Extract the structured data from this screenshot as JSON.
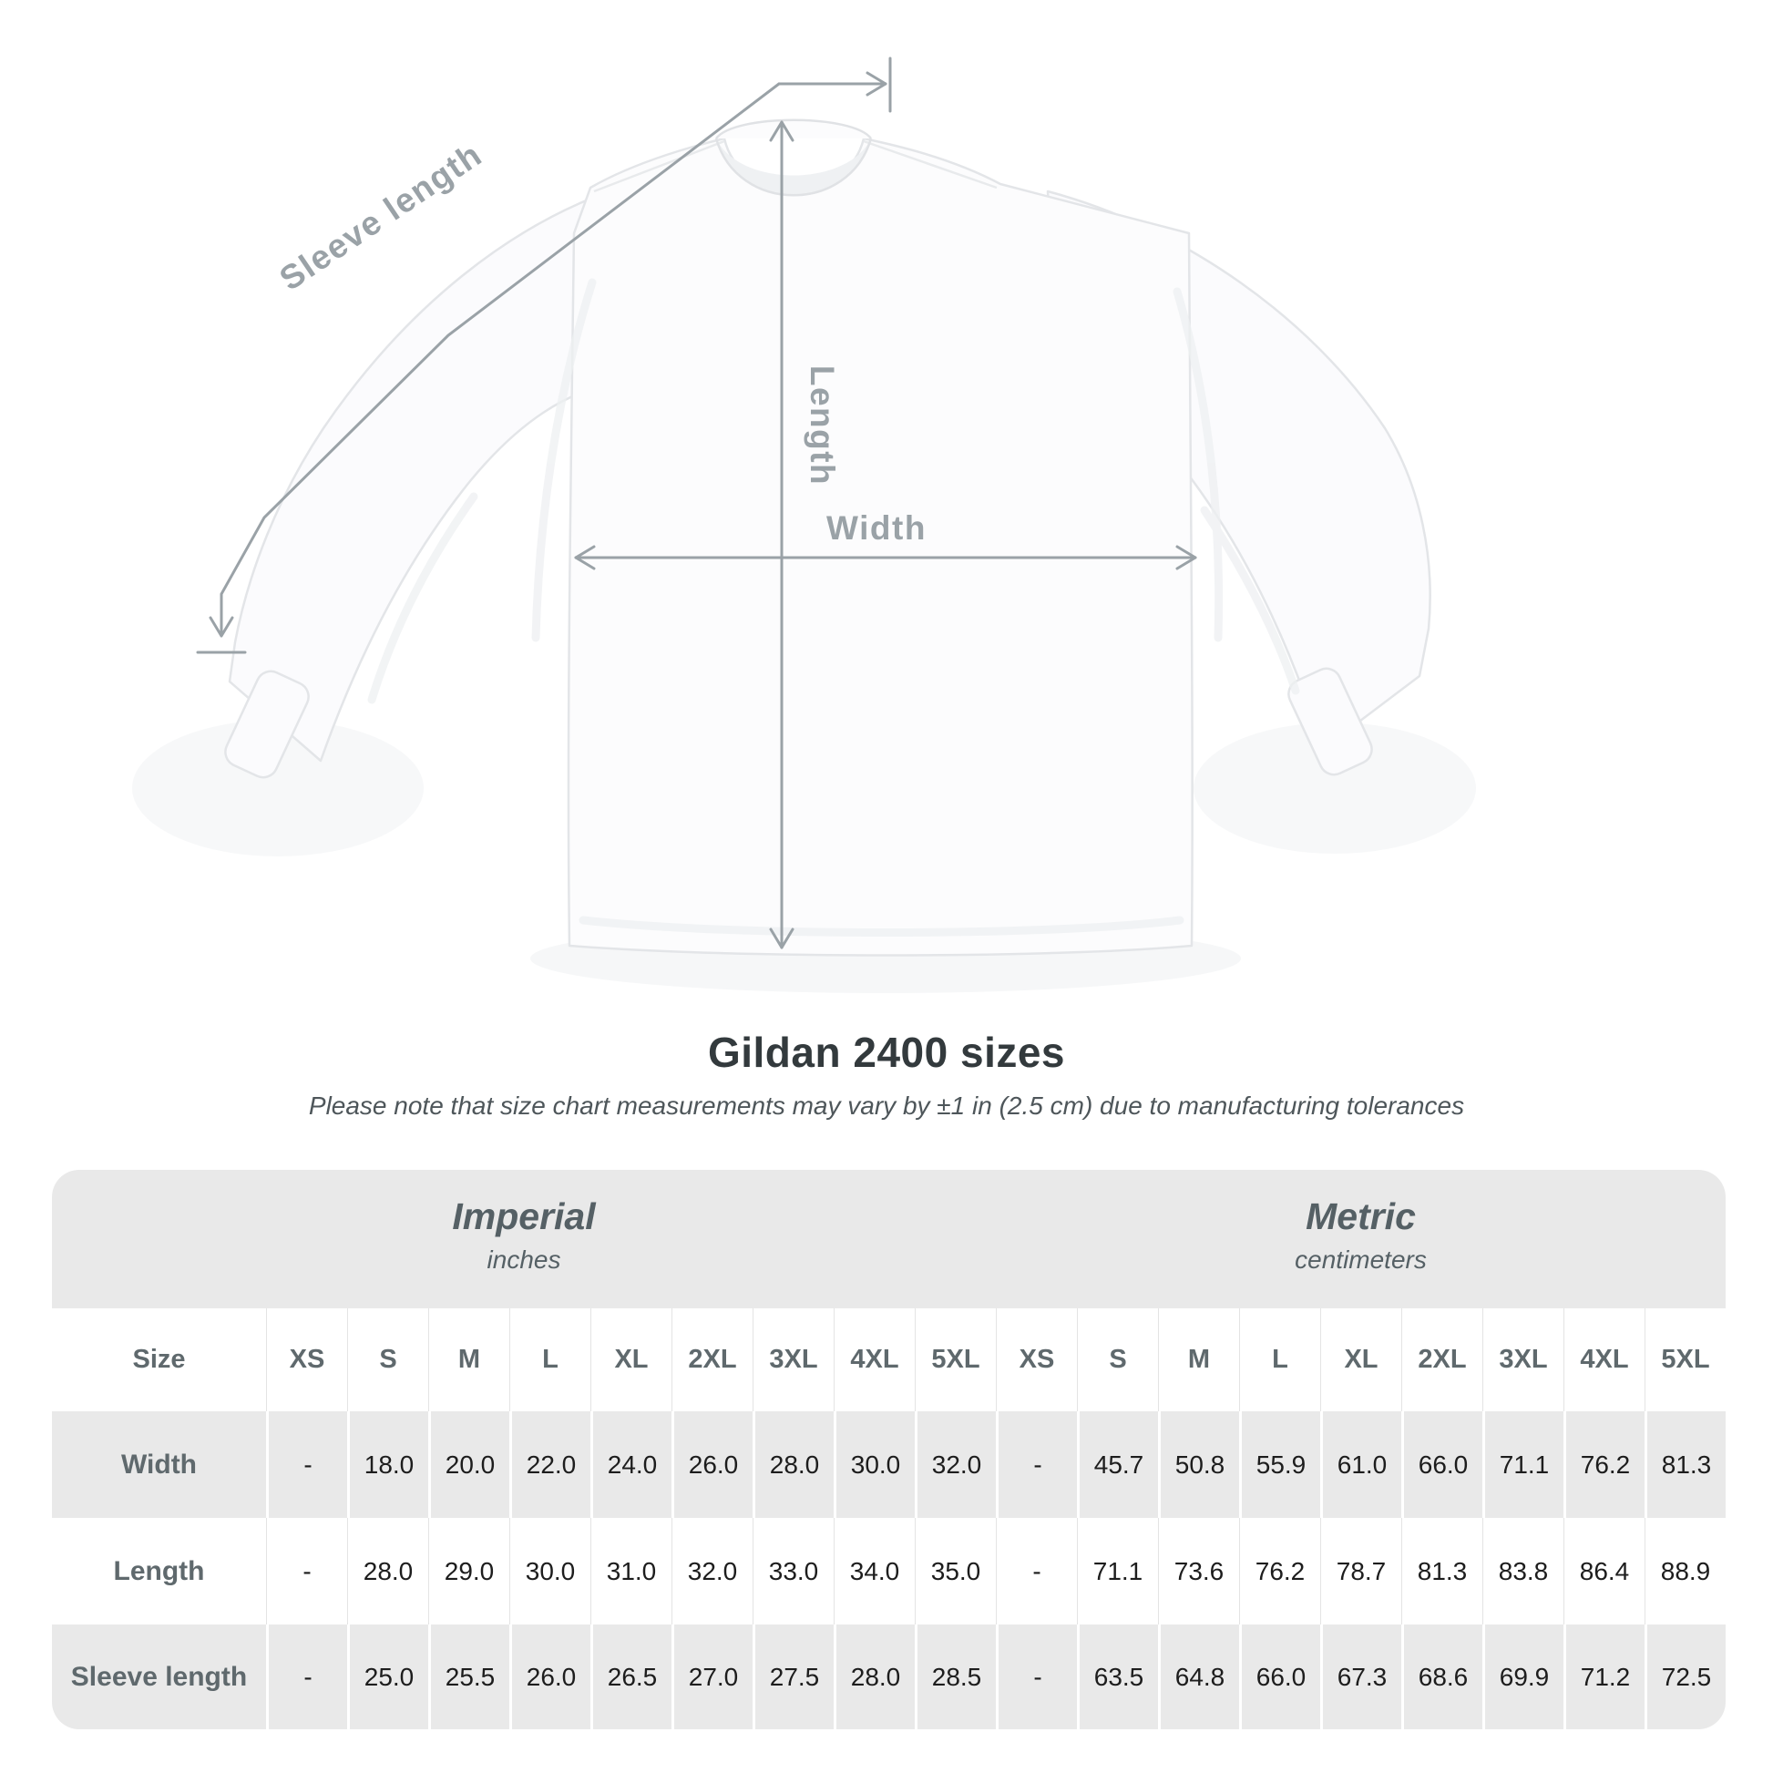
{
  "title": "Gildan 2400 sizes",
  "subtitle": "Please note that size chart measurements may vary by ±1 in (2.5 cm) due to manufacturing tolerances",
  "diagram": {
    "product": "long sleeve t-shirt front view",
    "labels": {
      "sleeve_length": "Sleeve length",
      "length": "Length",
      "width": "Width"
    }
  },
  "table": {
    "size_header": "Size",
    "sizes": [
      "XS",
      "S",
      "M",
      "L",
      "XL",
      "2XL",
      "3XL",
      "4XL",
      "5XL"
    ],
    "sections": [
      {
        "name": "Imperial",
        "unit": "inches"
      },
      {
        "name": "Metric",
        "unit": "centimeters"
      }
    ],
    "rows": [
      {
        "label": "Width",
        "imperial": [
          "-",
          "18.0",
          "20.0",
          "22.0",
          "24.0",
          "26.0",
          "28.0",
          "30.0",
          "32.0"
        ],
        "metric": [
          "-",
          "45.7",
          "50.8",
          "55.9",
          "61.0",
          "66.0",
          "71.1",
          "76.2",
          "81.3"
        ]
      },
      {
        "label": "Length",
        "imperial": [
          "-",
          "28.0",
          "29.0",
          "30.0",
          "31.0",
          "32.0",
          "33.0",
          "34.0",
          "35.0"
        ],
        "metric": [
          "-",
          "71.1",
          "73.6",
          "76.2",
          "78.7",
          "81.3",
          "83.8",
          "86.4",
          "88.9"
        ]
      },
      {
        "label": "Sleeve length",
        "imperial": [
          "-",
          "25.0",
          "25.5",
          "26.0",
          "26.5",
          "27.0",
          "27.5",
          "28.0",
          "28.5"
        ],
        "metric": [
          "-",
          "63.5",
          "64.8",
          "66.0",
          "67.3",
          "68.6",
          "69.9",
          "71.2",
          "72.5"
        ]
      }
    ]
  },
  "chart_data": {
    "type": "table",
    "title": "Gildan 2400 sizes",
    "columns": [
      "XS",
      "S",
      "M",
      "L",
      "XL",
      "2XL",
      "3XL",
      "4XL",
      "5XL"
    ],
    "series": [
      {
        "name": "Width (inches)",
        "values": [
          null,
          18.0,
          20.0,
          22.0,
          24.0,
          26.0,
          28.0,
          30.0,
          32.0
        ]
      },
      {
        "name": "Length (inches)",
        "values": [
          null,
          28.0,
          29.0,
          30.0,
          31.0,
          32.0,
          33.0,
          34.0,
          35.0
        ]
      },
      {
        "name": "Sleeve length (inches)",
        "values": [
          null,
          25.0,
          25.5,
          26.0,
          26.5,
          27.0,
          27.5,
          28.0,
          28.5
        ]
      },
      {
        "name": "Width (cm)",
        "values": [
          null,
          45.7,
          50.8,
          55.9,
          61.0,
          66.0,
          71.1,
          76.2,
          81.3
        ]
      },
      {
        "name": "Length (cm)",
        "values": [
          null,
          71.1,
          73.6,
          76.2,
          78.7,
          81.3,
          83.8,
          86.4,
          88.9
        ]
      },
      {
        "name": "Sleeve length (cm)",
        "values": [
          null,
          63.5,
          64.8,
          66.0,
          67.3,
          68.6,
          69.9,
          71.2,
          72.5
        ]
      }
    ]
  },
  "colors": {
    "annotation_gray": "#9aa2a7",
    "table_band_gray": "#e9e9e9",
    "row_stripe_gray": "#e9e9e9",
    "label_text": "#5f696d",
    "value_text": "#1d1d1d",
    "title_text": "#333a3d",
    "shirt_outline": "#e3e5e8"
  }
}
